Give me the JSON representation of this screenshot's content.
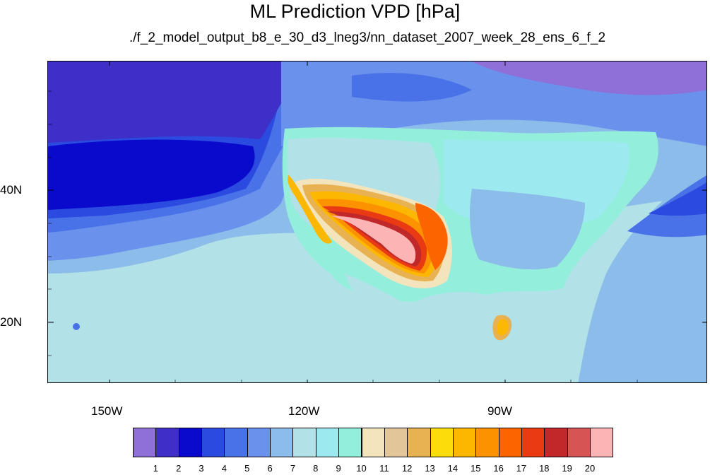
{
  "title": "ML Prediction VPD [hPa]",
  "subtitle": "./f_2_model_output_b8_e_30_d3_lneg3/nn_dataset_2007_week_28_ens_6_f_2",
  "y_axis_labels": [
    "40N",
    "20N"
  ],
  "x_axis_labels": [
    "150W",
    "120W",
    "90W"
  ],
  "colorbar": {
    "labels": [
      "1",
      "2",
      "3",
      "4",
      "5",
      "6",
      "7",
      "8",
      "9",
      "10",
      "11",
      "12",
      "13",
      "14",
      "15",
      "16",
      "17",
      "18",
      "19",
      "20"
    ],
    "colors": [
      "#8f6fd8",
      "#3d2fc8",
      "#0a0acc",
      "#2a4ae0",
      "#4a72e8",
      "#6a92ec",
      "#8cbcea",
      "#b2e2e8",
      "#9ceaf0",
      "#94eedc",
      "#f4e4bc",
      "#e2c69a",
      "#e8b252",
      "#fcdc0a",
      "#fcb800",
      "#fc9200",
      "#fc6400",
      "#ea3a14",
      "#c0282a",
      "#d65454",
      "#fcb4b4"
    ]
  },
  "colors": {
    "ocean_light": "#b2e2e8",
    "ocean_mid": "#8cbcea",
    "ocean_deep": "#0a0acc",
    "hot": "#fcb4b4"
  }
}
